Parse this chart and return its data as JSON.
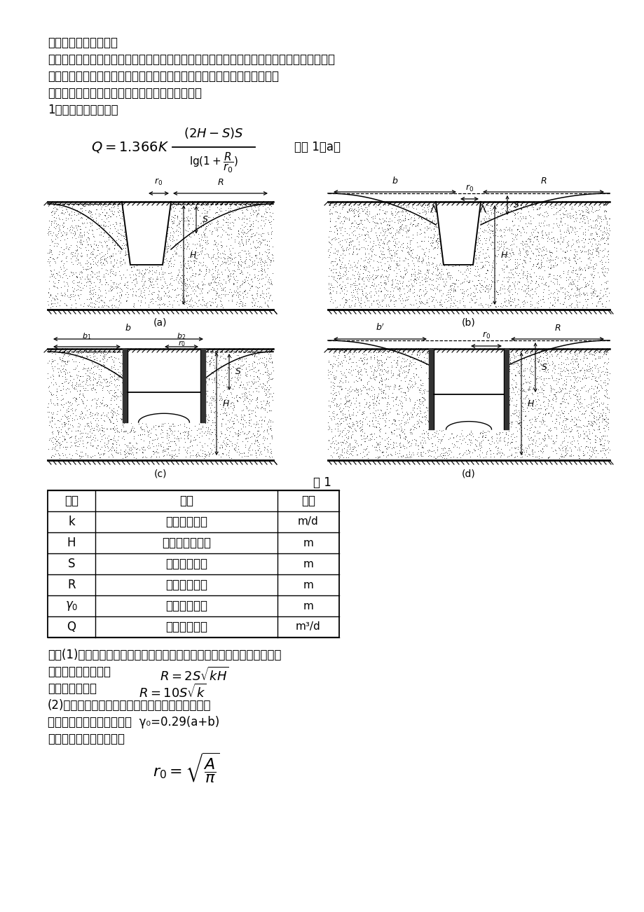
{
  "bg_color": "#ffffff",
  "title_line1": "一、基坑总涌水量计算",
  "para1": "按井管（筒）是否穿透整个含水层分为完整井和非完整井。按井深分为浅井、中深井和深井。",
  "para2": "当水井开凿在承压含水层中，而承压水头又高于地面时称承压井或自流井。",
  "para3": "（一）、均质含水层潜水完整井基坑涌水量计算：",
  "para4": "1、基坑远离水源时：",
  "formula_note": "如图 1（a）",
  "fig_caption": "图 1",
  "table_headers": [
    "符号",
    "意义",
    "单位"
  ],
  "table_rows": [
    [
      "k",
      "土的渗透系数",
      "m/d"
    ],
    [
      "H",
      "潜水含水层厚度",
      "m"
    ],
    [
      "S",
      "基坑水位降深",
      "m"
    ],
    [
      "R",
      "降水影响半径",
      "m"
    ],
    [
      "r0",
      "基坑等效半径",
      "m"
    ],
    [
      "Q",
      "基坑总涌水量",
      "m³/d"
    ]
  ],
  "note_line1": "注：(1)、降水影响半径宜根据试验确定，当基坑安全等级为二、三级时，",
  "note_line2": "当为潜水含水层时：",
  "note_line3": "当为承压水时：",
  "note_line4": "(2)、基坑等效半径当基坑为圆形时就是基坑半径，",
  "note_line5": "当基坑为矩形时如下计算：  γ₀=0.29(a+b)",
  "note_line6": "当基坑为不规则形状时："
}
